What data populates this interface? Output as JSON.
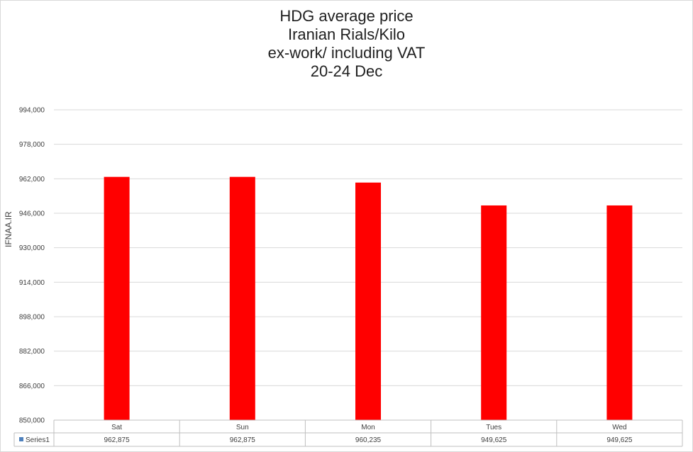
{
  "chart_data": {
    "type": "bar",
    "title": [
      "HDG average price",
      "Iranian Rials/Kilo",
      "ex-work/ including VAT",
      "20-24 Dec"
    ],
    "ylabel": "IFNAA.IR",
    "xlabel": "",
    "categories": [
      "Sat",
      "Sun",
      "Mon",
      "Tues",
      "Wed"
    ],
    "series": [
      {
        "name": "Series1",
        "values": [
          962875,
          962875,
          960235,
          949625,
          949625
        ],
        "color": "#ff0000"
      }
    ],
    "value_labels": [
      "962,875",
      "962,875",
      "960,235",
      "949,625",
      "949,625"
    ],
    "ylim": [
      850000,
      994000
    ],
    "yticks": [
      850000,
      866000,
      882000,
      898000,
      914000,
      930000,
      946000,
      962000,
      978000,
      994000
    ],
    "ytick_labels": [
      "850,000",
      "866,000",
      "882,000",
      "898,000",
      "914,000",
      "930,000",
      "946,000",
      "962,000",
      "978,000",
      "994,000"
    ],
    "grid": true,
    "data_table": true,
    "legend_color": "#4f81bd"
  }
}
